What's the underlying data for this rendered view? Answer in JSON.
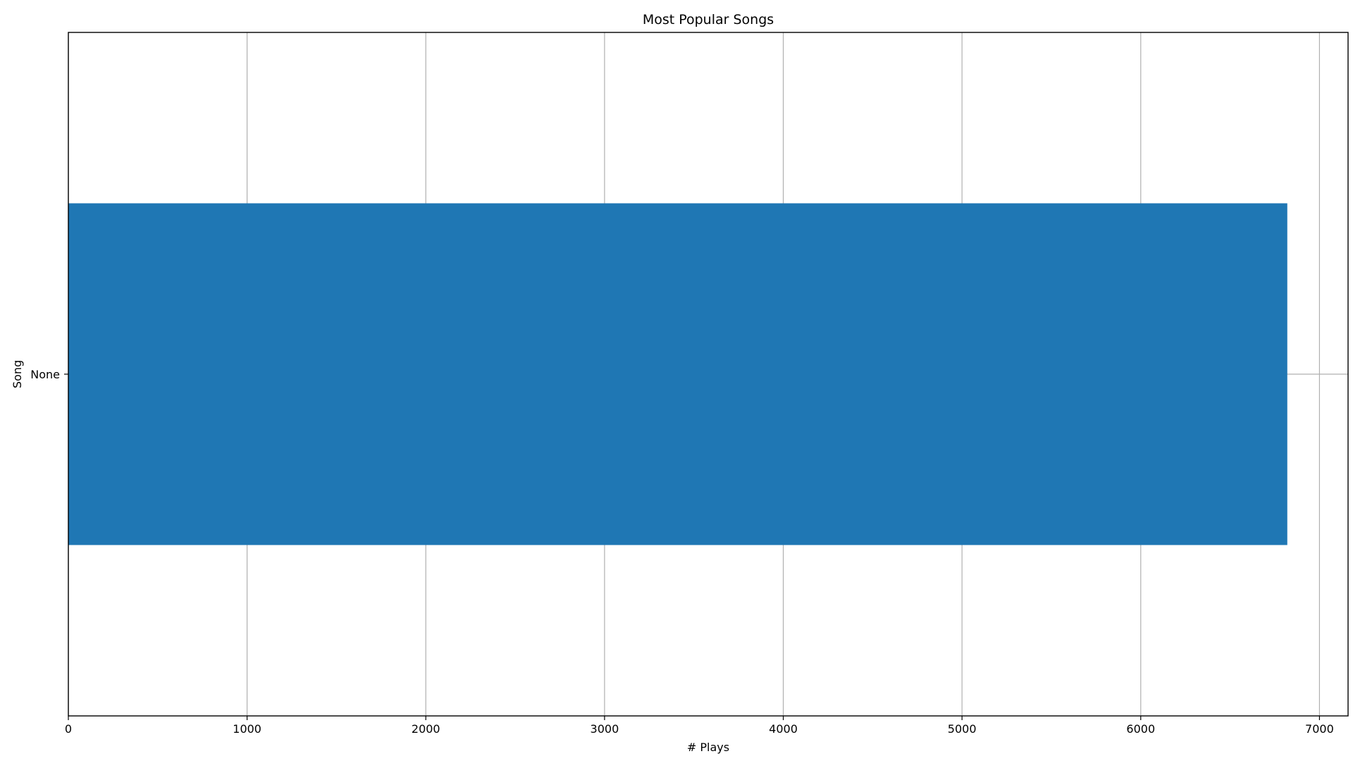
{
  "chart_data": {
    "type": "bar",
    "orientation": "horizontal",
    "title": "Most Popular Songs",
    "xlabel": "# Plays",
    "ylabel": "Song",
    "categories": [
      "None"
    ],
    "values": [
      6820
    ],
    "xlim": [
      0,
      7160
    ],
    "xticks": [
      0,
      1000,
      2000,
      3000,
      4000,
      5000,
      6000,
      7000
    ],
    "grid": true,
    "legend": "none",
    "bar_color": "#1f77b4"
  }
}
